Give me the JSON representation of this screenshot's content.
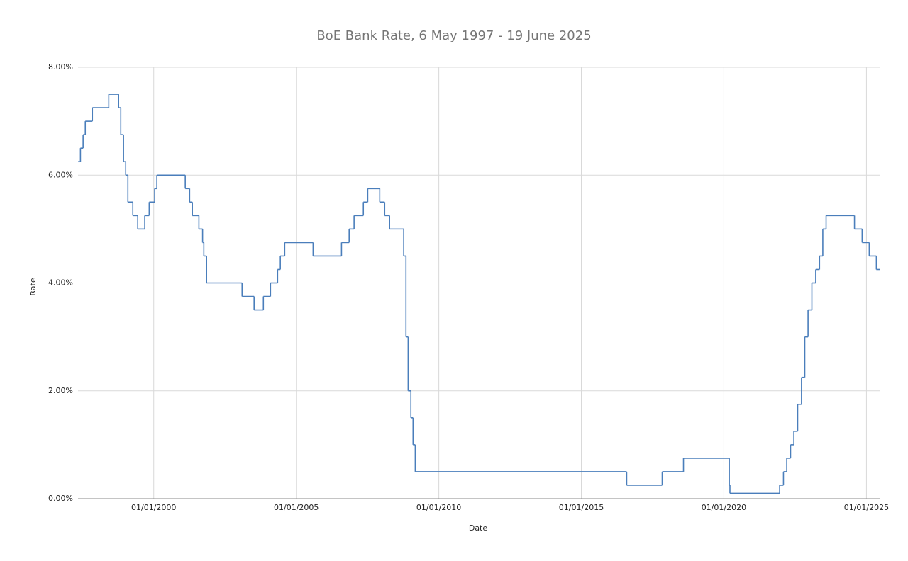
{
  "chart_data": {
    "type": "line",
    "title": "BoE Bank Rate, 6 May 1997 - 19 June 2025",
    "x_label": "Date",
    "y_label": "Rate",
    "x": [
      "1997-05-06",
      "1997-06-06",
      "1997-07-10",
      "1997-08-07",
      "1997-11-06",
      "1998-06-04",
      "1998-10-08",
      "1998-11-05",
      "1998-12-10",
      "1999-01-07",
      "1999-02-04",
      "1999-04-08",
      "1999-06-10",
      "1999-09-08",
      "1999-11-04",
      "2000-01-13",
      "2000-02-10",
      "2001-02-08",
      "2001-04-05",
      "2001-05-10",
      "2001-08-02",
      "2001-09-18",
      "2001-10-04",
      "2001-11-08",
      "2003-02-06",
      "2003-07-10",
      "2003-11-06",
      "2004-02-05",
      "2004-05-06",
      "2004-06-10",
      "2004-08-05",
      "2005-08-04",
      "2006-08-03",
      "2006-11-09",
      "2007-01-11",
      "2007-05-10",
      "2007-07-05",
      "2007-12-06",
      "2008-02-07",
      "2008-04-10",
      "2008-10-08",
      "2008-11-06",
      "2008-12-04",
      "2009-01-08",
      "2009-02-05",
      "2009-03-05",
      "2016-08-04",
      "2017-11-02",
      "2018-08-02",
      "2020-03-11",
      "2020-03-19",
      "2021-12-16",
      "2022-02-03",
      "2022-03-17",
      "2022-05-05",
      "2022-06-16",
      "2022-08-04",
      "2022-09-22",
      "2022-11-03",
      "2022-12-15",
      "2023-02-02",
      "2023-03-23",
      "2023-05-11",
      "2023-06-22",
      "2023-08-03",
      "2024-08-01",
      "2024-11-07",
      "2025-02-06",
      "2025-05-08",
      "2025-06-19"
    ],
    "series": [
      {
        "name": "Rate",
        "color": "#4a7ebb",
        "values": [
          6.25,
          6.5,
          6.75,
          7.0,
          7.25,
          7.5,
          7.25,
          6.75,
          6.25,
          6.0,
          5.5,
          5.25,
          5.0,
          5.25,
          5.5,
          5.75,
          6.0,
          5.75,
          5.5,
          5.25,
          5.0,
          4.75,
          4.5,
          4.0,
          3.75,
          3.5,
          3.75,
          4.0,
          4.25,
          4.5,
          4.75,
          4.5,
          4.75,
          5.0,
          5.25,
          5.5,
          5.75,
          5.5,
          5.25,
          5.0,
          4.5,
          3.0,
          2.0,
          1.5,
          1.0,
          0.5,
          0.25,
          0.5,
          0.75,
          0.25,
          0.1,
          0.25,
          0.5,
          0.75,
          1.0,
          1.25,
          1.75,
          2.25,
          3.0,
          3.5,
          4.0,
          4.25,
          4.5,
          5.0,
          5.25,
          5.0,
          4.75,
          4.5,
          4.25,
          4.25
        ]
      }
    ],
    "xlim": [
      "1997-05-06",
      "2025-06-19"
    ],
    "xticks": [
      {
        "value": "2000-01-01",
        "label": "01/01/2000"
      },
      {
        "value": "2005-01-01",
        "label": "01/01/2005"
      },
      {
        "value": "2010-01-01",
        "label": "01/01/2010"
      },
      {
        "value": "2015-01-01",
        "label": "01/01/2015"
      },
      {
        "value": "2020-01-01",
        "label": "01/01/2020"
      },
      {
        "value": "2025-01-01",
        "label": "01/01/2025"
      }
    ],
    "ylim": [
      0,
      8
    ],
    "yticks": [
      {
        "value": 0,
        "label": "0.00%"
      },
      {
        "value": 2,
        "label": "2.00%"
      },
      {
        "value": 4,
        "label": "4.00%"
      },
      {
        "value": 6,
        "label": "6.00%"
      },
      {
        "value": 8,
        "label": "8.00%"
      }
    ],
    "grid": true,
    "step": true
  }
}
